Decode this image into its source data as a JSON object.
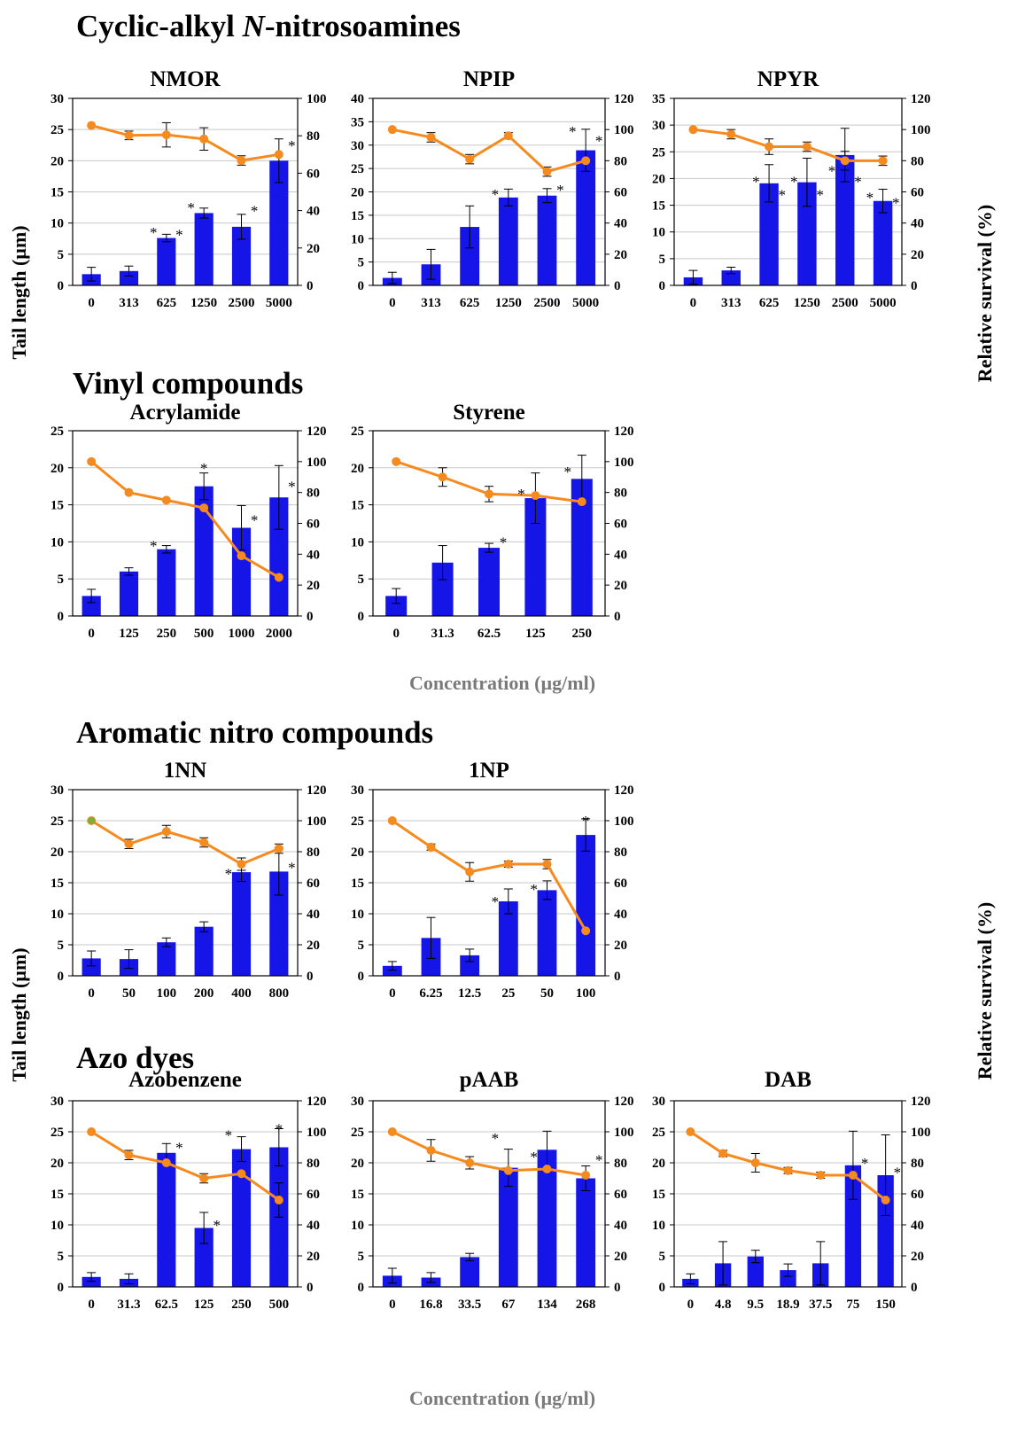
{
  "colors": {
    "bar": "#1515e8",
    "line": "#f58a1f",
    "frame": "#000000",
    "grid": "#c8c8c8",
    "first_marker": "#7cae3a"
  },
  "sections": [
    {
      "title": "Cyclic-alkyl ",
      "title_italic": "N",
      "title_rest": "-nitrosoamines"
    },
    {
      "title": "Vinyl compounds"
    },
    {
      "title": "Aromatic nitro compounds"
    },
    {
      "title": "Azo dyes"
    }
  ],
  "axis_labels": {
    "left": "Tail length (µm)",
    "right": "Relative survival (%)",
    "concentration": "Concentration (µg/ml)"
  },
  "chart_data": [
    {
      "title": "NMOR",
      "type": "bar+line",
      "categories": [
        "0",
        "313",
        "625",
        "1250",
        "2500",
        "5000"
      ],
      "bars": [
        1.8,
        2.3,
        7.6,
        11.6,
        9.4,
        20.0
      ],
      "bar_err": [
        1.1,
        0.8,
        0.6,
        0.8,
        2.0,
        3.5
      ],
      "line": [
        85.5,
        80.2,
        80.5,
        78.3,
        66.8,
        70.0
      ],
      "line_err": [
        0,
        2.3,
        6.5,
        6.0,
        2.5,
        0
      ],
      "y_left": [
        0,
        30
      ],
      "y_left_ticks": [
        0,
        5,
        10,
        15,
        20,
        25,
        30
      ],
      "y_right": [
        0,
        100
      ],
      "y_right_ticks": [
        "0",
        "20",
        "40",
        "60",
        "80",
        "100"
      ],
      "right_tick_labels": [
        "0",
        "20",
        "40",
        "60",
        "80",
        "100"
      ],
      "stars": [
        {
          "i": 2,
          "v": 8.5,
          "s": -1
        },
        {
          "i": 2,
          "v": 8.2,
          "s": 1
        },
        {
          "i": 3,
          "v": 12.5,
          "s": -1
        },
        {
          "i": 4,
          "v": 12.0,
          "s": 1
        },
        {
          "i": 5,
          "v": 22.5,
          "s": 1
        }
      ]
    },
    {
      "title": "NPIP",
      "type": "bar+line",
      "categories": [
        "0",
        "313",
        "625",
        "1250",
        "2500",
        "5000"
      ],
      "bars": [
        1.6,
        4.5,
        12.5,
        18.8,
        19.2,
        28.9
      ],
      "bar_err": [
        1.2,
        3.2,
        4.5,
        1.8,
        1.5,
        4.5
      ],
      "line": [
        100,
        95,
        81,
        96,
        73,
        80
      ],
      "line_err": [
        0,
        3,
        3,
        2,
        3,
        0
      ],
      "y_left": [
        0,
        40
      ],
      "y_left_ticks": [
        0,
        5,
        10,
        15,
        20,
        25,
        30,
        35,
        40
      ],
      "y_right": [
        0,
        120
      ],
      "y_right_ticks": [
        0,
        20,
        40,
        60,
        80,
        100,
        120
      ],
      "right_tick_labels": [
        "0",
        "20",
        "40",
        "60",
        "80",
        "100",
        "120"
      ],
      "stars": [
        {
          "i": 3,
          "v": 19.5,
          "s": -1
        },
        {
          "i": 4,
          "v": 20.5,
          "s": 1
        },
        {
          "i": 5,
          "v": 33.0,
          "s": -1
        },
        {
          "i": 5,
          "v": 31.0,
          "s": 1
        }
      ]
    },
    {
      "title": "NPYR",
      "type": "bar+line",
      "categories": [
        "0",
        "313",
        "625",
        "1250",
        "2500",
        "5000"
      ],
      "bars": [
        1.5,
        2.8,
        19.1,
        19.3,
        24.4,
        15.8
      ],
      "bar_err": [
        1.3,
        0.6,
        3.5,
        4.5,
        5.0,
        2.2
      ],
      "line": [
        100,
        97,
        89,
        89,
        80,
        80
      ],
      "line_err": [
        0,
        3,
        5,
        3,
        6,
        3
      ],
      "y_left": [
        0,
        35
      ],
      "y_left_ticks": [
        0,
        5,
        10,
        15,
        20,
        25,
        30,
        35
      ],
      "y_right": [
        0,
        120
      ],
      "y_right_ticks": [
        0,
        20,
        40,
        60,
        80,
        100,
        120
      ],
      "right_tick_labels": [
        "0",
        "20",
        "40",
        "60",
        "80",
        "100",
        "120"
      ],
      "stars": [
        {
          "i": 2,
          "v": 19.5,
          "s": -1
        },
        {
          "i": 2,
          "v": 17.0,
          "s": 1
        },
        {
          "i": 3,
          "v": 19.5,
          "s": -1
        },
        {
          "i": 3,
          "v": 17.0,
          "s": 1
        },
        {
          "i": 4,
          "v": 21.5,
          "s": -1
        },
        {
          "i": 4,
          "v": 19.5,
          "s": 1
        },
        {
          "i": 5,
          "v": 16.5,
          "s": -1
        },
        {
          "i": 5,
          "v": 15.5,
          "s": 1
        }
      ]
    },
    {
      "title": "Acrylamide",
      "type": "bar+line",
      "categories": [
        "0",
        "125",
        "250",
        "500",
        "1000",
        "2000"
      ],
      "bars": [
        2.7,
        6.0,
        9.0,
        17.5,
        11.9,
        16.0
      ],
      "bar_err": [
        0.9,
        0.5,
        0.5,
        1.8,
        3.0,
        4.3
      ],
      "line": [
        100,
        80,
        75,
        70,
        39,
        25
      ],
      "line_err": [
        0,
        0,
        0,
        0,
        0,
        0
      ],
      "y_left": [
        0,
        25
      ],
      "y_left_ticks": [
        0,
        5,
        10,
        15,
        20,
        25
      ],
      "y_right": [
        0,
        120
      ],
      "y_right_ticks": [
        0,
        20,
        40,
        60,
        80,
        100,
        120
      ],
      "right_tick_labels": [
        "0",
        "20",
        "40",
        "60",
        "80",
        "100",
        "120"
      ],
      "stars": [
        {
          "i": 2,
          "v": 9.5,
          "s": -1
        },
        {
          "i": 3,
          "v": 20.0,
          "s": 0
        },
        {
          "i": 4,
          "v": 13.0,
          "s": 1
        },
        {
          "i": 5,
          "v": 17.5,
          "s": 1
        }
      ]
    },
    {
      "title": "Styrene",
      "type": "bar+line",
      "categories": [
        "0",
        "31.3",
        "62.5",
        "125",
        "250"
      ],
      "bars": [
        2.7,
        7.2,
        9.2,
        15.9,
        18.5
      ],
      "bar_err": [
        1.0,
        2.3,
        0.6,
        3.4,
        3.2
      ],
      "line": [
        100,
        90,
        79,
        78,
        74
      ],
      "line_err": [
        0,
        6,
        5,
        0,
        0
      ],
      "y_left": [
        0,
        25
      ],
      "y_left_ticks": [
        0,
        5,
        10,
        15,
        20,
        25
      ],
      "y_right": [
        0,
        120
      ],
      "y_right_ticks": [
        0,
        20,
        40,
        60,
        80,
        100,
        120
      ],
      "right_tick_labels": [
        "0",
        "20",
        "40",
        "60",
        "80",
        "100",
        "120"
      ],
      "stars": [
        {
          "i": 2,
          "v": 10.0,
          "s": 1
        },
        {
          "i": 3,
          "v": 16.5,
          "s": -1
        },
        {
          "i": 4,
          "v": 19.5,
          "s": -1
        }
      ]
    },
    {
      "title": "1NN",
      "type": "bar+line",
      "categories": [
        "0",
        "50",
        "100",
        "200",
        "400",
        "800"
      ],
      "bars": [
        2.8,
        2.7,
        5.4,
        7.9,
        16.7,
        16.8
      ],
      "bar_err": [
        1.2,
        1.5,
        0.7,
        0.8,
        1.5,
        3.8
      ],
      "line": [
        100,
        85,
        93,
        86,
        72,
        82
      ],
      "line_err": [
        0,
        3,
        4,
        3,
        4,
        3
      ],
      "y_left": [
        0,
        30
      ],
      "y_left_ticks": [
        0,
        5,
        10,
        15,
        20,
        25,
        30
      ],
      "y_right": [
        0,
        120
      ],
      "y_right_ticks": [
        0,
        20,
        40,
        60,
        80,
        100,
        120
      ],
      "right_tick_labels": [
        "0",
        "20",
        "40",
        "60",
        "80",
        "100",
        "120"
      ],
      "stars": [
        {
          "i": 4,
          "v": 16.5,
          "s": -1
        },
        {
          "i": 5,
          "v": 17.5,
          "s": 1
        }
      ]
    },
    {
      "title": "1NP",
      "type": "bar+line",
      "categories": [
        "0",
        "6.25",
        "12.5",
        "25",
        "50",
        "100"
      ],
      "bars": [
        1.6,
        6.1,
        3.3,
        12.0,
        13.8,
        22.7
      ],
      "bar_err": [
        0.7,
        3.3,
        1.0,
        2.0,
        1.5,
        2.6
      ],
      "line": [
        100,
        83,
        67,
        72,
        72,
        29
      ],
      "line_err": [
        0,
        2,
        6,
        2,
        3,
        0
      ],
      "y_left": [
        0,
        30
      ],
      "y_left_ticks": [
        0,
        5,
        10,
        15,
        20,
        25,
        30
      ],
      "y_right": [
        0,
        120
      ],
      "y_right_ticks": [
        0,
        20,
        40,
        60,
        80,
        100,
        120
      ],
      "right_tick_labels": [
        "0",
        "20",
        "40",
        "60",
        "80",
        "100",
        "120"
      ],
      "stars": [
        {
          "i": 3,
          "v": 12.0,
          "s": -1
        },
        {
          "i": 4,
          "v": 14.0,
          "s": -1
        },
        {
          "i": 5,
          "v": 25.0,
          "s": 0
        }
      ]
    },
    {
      "title": "Azobenzene",
      "type": "bar+line",
      "categories": [
        "0",
        "31.3",
        "62.5",
        "125",
        "250",
        "500"
      ],
      "bars": [
        1.6,
        1.3,
        21.6,
        9.5,
        22.2,
        22.5
      ],
      "bar_err": [
        0.7,
        0.8,
        1.5,
        2.5,
        2.0,
        3.0
      ],
      "line": [
        100,
        85,
        80,
        70,
        73,
        56
      ],
      "line_err": [
        0,
        3,
        0,
        3,
        0,
        11
      ],
      "y_left": [
        0,
        30
      ],
      "y_left_ticks": [
        0,
        5,
        10,
        15,
        20,
        25,
        30
      ],
      "y_right": [
        0,
        120
      ],
      "y_right_ticks": [
        0,
        20,
        40,
        60,
        80,
        100,
        120
      ],
      "right_tick_labels": [
        "0",
        "20",
        "40",
        "60",
        "80",
        "100",
        "120"
      ],
      "stars": [
        {
          "i": 2,
          "v": 22.5,
          "s": 1
        },
        {
          "i": 3,
          "v": 10.0,
          "s": 1
        },
        {
          "i": 4,
          "v": 24.5,
          "s": -1
        },
        {
          "i": 5,
          "v": 25.5,
          "s": 0
        }
      ]
    },
    {
      "title": "pAAB",
      "type": "bar+line",
      "categories": [
        "0",
        "16.8",
        "33.5",
        "67",
        "134",
        "268"
      ],
      "bars": [
        1.8,
        1.5,
        4.8,
        19.2,
        22.1,
        17.5
      ],
      "bar_err": [
        1.2,
        0.8,
        0.6,
        3.0,
        3.0,
        2.0
      ],
      "line": [
        100,
        88,
        80,
        75,
        76,
        72
      ],
      "line_err": [
        0,
        7,
        4,
        0,
        0,
        0
      ],
      "y_left": [
        0,
        30
      ],
      "y_left_ticks": [
        0,
        5,
        10,
        15,
        20,
        25,
        30
      ],
      "y_right": [
        0,
        120
      ],
      "y_right_ticks": [
        0,
        20,
        40,
        60,
        80,
        100,
        120
      ],
      "right_tick_labels": [
        "0",
        "20",
        "40",
        "60",
        "80",
        "100",
        "120"
      ],
      "stars": [
        {
          "i": 3,
          "v": 24.0,
          "s": -1
        },
        {
          "i": 4,
          "v": 21.0,
          "s": -1
        },
        {
          "i": 5,
          "v": 20.5,
          "s": 1
        }
      ]
    },
    {
      "title": "DAB",
      "type": "bar+line",
      "categories": [
        "0",
        "4.8",
        "9.5",
        "18.9",
        "37.5",
        "75",
        "150"
      ],
      "bars": [
        1.3,
        3.8,
        4.9,
        2.7,
        3.8,
        19.6,
        18.0
      ],
      "bar_err": [
        0.8,
        3.5,
        1.0,
        1.0,
        3.5,
        5.5,
        6.5
      ],
      "line": [
        100,
        86,
        80,
        75,
        72,
        72,
        56
      ],
      "line_err": [
        0,
        2,
        6,
        2,
        2,
        0,
        0
      ],
      "y_left": [
        0,
        30
      ],
      "y_left_ticks": [
        0,
        5,
        10,
        15,
        20,
        25,
        30
      ],
      "y_right": [
        0,
        120
      ],
      "y_right_ticks": [
        0,
        20,
        40,
        60,
        80,
        100,
        120
      ],
      "right_tick_labels": [
        "0",
        "20",
        "40",
        "60",
        "80",
        "100",
        "120"
      ],
      "stars": [
        {
          "i": 5,
          "v": 20.0,
          "s": 1
        },
        {
          "i": 6,
          "v": 18.5,
          "s": 1
        }
      ]
    }
  ]
}
